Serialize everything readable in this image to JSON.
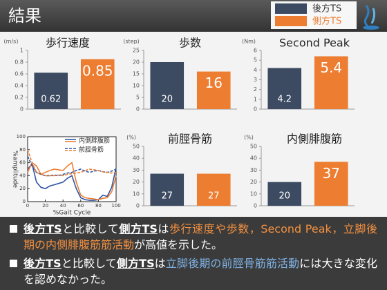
{
  "header": {
    "title": "結果"
  },
  "legend": [
    {
      "name": "後方TS",
      "color": "#3c4b61"
    },
    {
      "name": "側方TS",
      "color": "#ed7d31"
    }
  ],
  "chart_data": [
    {
      "type": "bar",
      "title": "歩行速度",
      "unit": "(m/s)",
      "values": [
        0.62,
        0.85
      ],
      "colors": [
        "#3c4b61",
        "#ed7d31"
      ],
      "label_emphasis": [
        false,
        true
      ],
      "ylim": [
        0,
        1
      ],
      "yticks": [
        0,
        0.2,
        0.4,
        0.6,
        0.8,
        1
      ]
    },
    {
      "type": "bar",
      "title": "歩数",
      "unit": "(step)",
      "values": [
        20,
        16
      ],
      "colors": [
        "#3c4b61",
        "#ed7d31"
      ],
      "label_emphasis": [
        false,
        true
      ],
      "ylim": [
        0,
        25
      ],
      "yticks": [
        0,
        5,
        10,
        15,
        20,
        25
      ]
    },
    {
      "type": "bar",
      "title": "Second Peak",
      "unit": "(Nm)",
      "values": [
        4.2,
        5.4
      ],
      "colors": [
        "#3c4b61",
        "#ed7d31"
      ],
      "label_emphasis": [
        false,
        true
      ],
      "ylim": [
        0,
        6
      ],
      "yticks": [
        0,
        1,
        2,
        3,
        4,
        5,
        6
      ]
    },
    {
      "type": "line",
      "ylabel": "%amplitude",
      "xlabel": "%Gait Cycle",
      "x": [
        0,
        5,
        10,
        15,
        20,
        25,
        30,
        35,
        40,
        45,
        50,
        55,
        60,
        65,
        70,
        75,
        80,
        85,
        90,
        95,
        100
      ],
      "series": [
        {
          "name": "内側腓腹筋",
          "dash": false,
          "lines": [
            {
              "color": "#2f55a4",
              "values": [
                50,
                58,
                30,
                22,
                20,
                24,
                26,
                28,
                30,
                36,
                40,
                20,
                6,
                3,
                2,
                2,
                3,
                10,
                8,
                22,
                52
              ]
            },
            {
              "color": "#ed7d31",
              "values": [
                45,
                60,
                55,
                42,
                45,
                48,
                50,
                49,
                48,
                55,
                60,
                30,
                10,
                6,
                5,
                4,
                3,
                5,
                6,
                15,
                40
              ]
            }
          ]
        },
        {
          "name": "前脛骨筋",
          "dash": true,
          "lines": [
            {
              "color": "#2f55a4",
              "values": [
                70,
                55,
                45,
                42,
                40,
                40,
                41,
                40,
                42,
                44,
                45,
                48,
                50,
                47,
                45,
                47,
                48,
                46,
                45,
                47,
                50
              ]
            },
            {
              "color": "#ed7d31",
              "values": [
                80,
                60,
                45,
                42,
                40,
                40,
                40,
                41,
                40,
                42,
                43,
                44,
                45,
                48,
                50,
                49,
                48,
                46,
                45,
                44,
                45
              ]
            }
          ]
        }
      ],
      "xlim": [
        0,
        100
      ],
      "xticks": [
        0,
        20,
        40,
        60,
        80,
        100
      ],
      "ylim": [
        0,
        100
      ],
      "yticks": [
        0,
        20,
        40,
        60,
        80,
        100
      ]
    },
    {
      "type": "bar",
      "title": "前脛骨筋",
      "unit": "(%)",
      "values": [
        27,
        27
      ],
      "colors": [
        "#3c4b61",
        "#ed7d31"
      ],
      "label_emphasis": [
        false,
        false
      ],
      "ylim": [
        0,
        50
      ],
      "yticks": [
        0,
        10,
        20,
        30,
        40,
        50
      ]
    },
    {
      "type": "bar",
      "title": "内側腓腹筋",
      "unit": "(%)",
      "values": [
        20,
        37
      ],
      "colors": [
        "#3c4b61",
        "#ed7d31"
      ],
      "label_emphasis": [
        false,
        true
      ],
      "ylim": [
        0,
        50
      ],
      "yticks": [
        0,
        10,
        20,
        30,
        40,
        50
      ]
    }
  ],
  "bullets": [
    [
      {
        "text": "後方TS",
        "style": "key"
      },
      {
        "text": "と比較して",
        "style": "plain"
      },
      {
        "text": "側方TS",
        "style": "key"
      },
      {
        "text": "は",
        "style": "plain"
      },
      {
        "text": "歩行速度や歩数，Second Peak，立脚後期の内側腓腹筋筋活動",
        "style": "orange"
      },
      {
        "text": "が高値を示した。",
        "style": "plain"
      }
    ],
    [
      {
        "text": "後方TS",
        "style": "key"
      },
      {
        "text": "と比較して",
        "style": "plain"
      },
      {
        "text": "側方TS",
        "style": "key"
      },
      {
        "text": "は",
        "style": "plain"
      },
      {
        "text": "立脚後期の前脛骨筋筋活動",
        "style": "blue"
      },
      {
        "text": "には大きな変化を認めなかった。",
        "style": "plain"
      }
    ]
  ]
}
